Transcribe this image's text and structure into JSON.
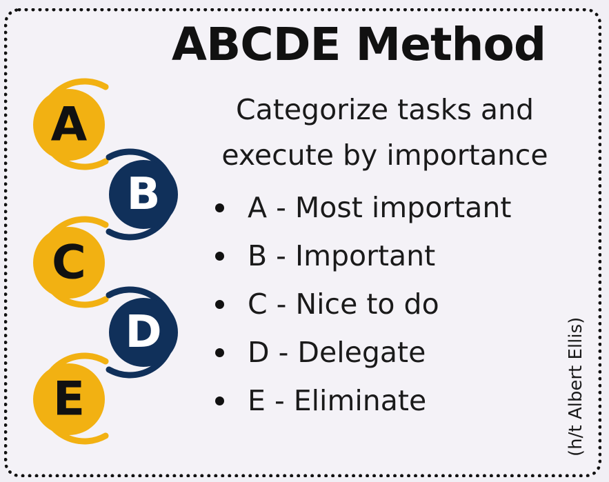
{
  "title": "ABCDE Method",
  "subtitle_line1": "Categorize tasks and",
  "subtitle_line2": "execute by importance",
  "items": [
    {
      "letter": "A",
      "text": "A - Most important",
      "color": "#f2b112",
      "text_color": "#111111"
    },
    {
      "letter": "B",
      "text": "B - Important",
      "color": "#10305a",
      "text_color": "#ffffff"
    },
    {
      "letter": "C",
      "text": "C - Nice to do",
      "color": "#f2b112",
      "text_color": "#111111"
    },
    {
      "letter": "D",
      "text": "D - Delegate",
      "color": "#10305a",
      "text_color": "#ffffff"
    },
    {
      "letter": "E",
      "text": "E - Eliminate",
      "color": "#f2b112",
      "text_color": "#111111"
    }
  ],
  "credit": "(h/t Albert Ellis)"
}
